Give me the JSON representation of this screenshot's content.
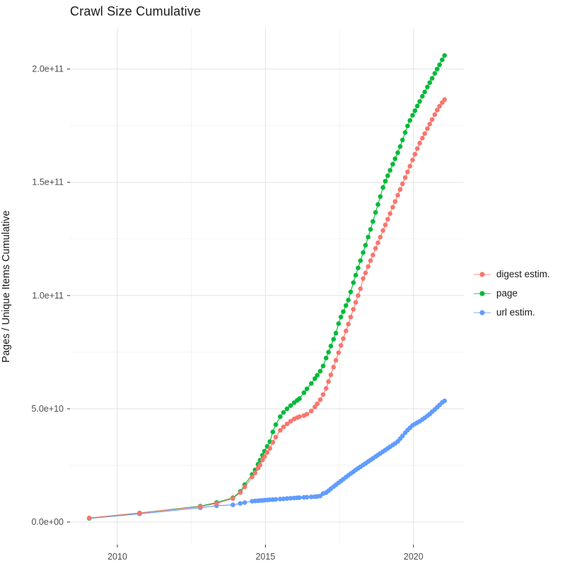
{
  "chart_data": {
    "type": "scatter",
    "title": "Crawl Size Cumulative",
    "xlabel": "",
    "ylabel": "Pages / Unique Items Cumulative",
    "value_unit_note": "y values stored in billions (1e9)",
    "xlim": [
      2008.4,
      2021.7
    ],
    "ylim": [
      -10,
      218
    ],
    "grid": true,
    "legend_position": "right",
    "x_ticks": [
      {
        "value": 2010,
        "label": "2010"
      },
      {
        "value": 2015,
        "label": "2015"
      },
      {
        "value": 2020,
        "label": "2020"
      }
    ],
    "x_minor": [
      2012.5,
      2017.5
    ],
    "y_ticks": [
      {
        "value": 0,
        "label": "0.0e+00"
      },
      {
        "value": 50,
        "label": "5.0e+10"
      },
      {
        "value": 100,
        "label": "1.0e+11"
      },
      {
        "value": 150,
        "label": "1.5e+11"
      },
      {
        "value": 200,
        "label": "2.0e+11"
      }
    ],
    "y_minor": [
      25,
      75,
      125,
      175
    ],
    "colors": {
      "grid_major": "#e3e3e3",
      "grid_minor": "#f0f0f0",
      "tick_text": "#4d4d4d",
      "tick_mark": "#333333",
      "title_text": "#1a1a1a"
    },
    "series": [
      {
        "name": "digest estim.",
        "color": "#F8766D",
        "points": [
          [
            2009.05,
            1.8
          ],
          [
            2010.75,
            4.0
          ],
          [
            2012.8,
            6.8
          ],
          [
            2013.35,
            8.2
          ],
          [
            2013.9,
            10.4
          ],
          [
            2014.15,
            13.0
          ],
          [
            2014.3,
            15.5
          ],
          [
            2014.55,
            19.9
          ],
          [
            2014.65,
            21.7
          ],
          [
            2014.75,
            23.8
          ],
          [
            2014.82,
            25.2
          ],
          [
            2014.9,
            27.4
          ],
          [
            2014.97,
            28.9
          ],
          [
            2015.06,
            30.7
          ],
          [
            2015.15,
            32.5
          ],
          [
            2015.25,
            35.2
          ],
          [
            2015.35,
            37.5
          ],
          [
            2015.5,
            40.5
          ],
          [
            2015.61,
            42.0
          ],
          [
            2015.73,
            43.3
          ],
          [
            2015.85,
            44.5
          ],
          [
            2015.97,
            45.5
          ],
          [
            2016.07,
            46.1
          ],
          [
            2016.15,
            46.5
          ],
          [
            2016.3,
            47.0
          ],
          [
            2016.4,
            47.6
          ],
          [
            2016.55,
            49.0
          ],
          [
            2016.67,
            50.8
          ],
          [
            2016.75,
            52.2
          ],
          [
            2016.85,
            54.0
          ],
          [
            2016.95,
            56.3
          ],
          [
            2017.05,
            59.0
          ],
          [
            2017.13,
            62.0
          ],
          [
            2017.21,
            65.0
          ],
          [
            2017.3,
            68.4
          ],
          [
            2017.38,
            71.4
          ],
          [
            2017.47,
            74.8
          ],
          [
            2017.55,
            78.0
          ],
          [
            2017.63,
            81.0
          ],
          [
            2017.72,
            84.4
          ],
          [
            2017.8,
            87.4
          ],
          [
            2017.88,
            90.5
          ],
          [
            2017.97,
            93.9
          ],
          [
            2018.05,
            97.0
          ],
          [
            2018.13,
            100.0
          ],
          [
            2018.21,
            103.0
          ],
          [
            2018.3,
            107.5
          ],
          [
            2018.38,
            110.0
          ],
          [
            2018.47,
            112.8
          ],
          [
            2018.55,
            115.4
          ],
          [
            2018.63,
            117.9
          ],
          [
            2018.72,
            120.8
          ],
          [
            2018.8,
            123.3
          ],
          [
            2018.88,
            125.8
          ],
          [
            2018.97,
            128.7
          ],
          [
            2019.05,
            131.2
          ],
          [
            2019.13,
            133.7
          ],
          [
            2019.21,
            136.2
          ],
          [
            2019.3,
            139.0
          ],
          [
            2019.38,
            141.5
          ],
          [
            2019.47,
            144.3
          ],
          [
            2019.55,
            146.8
          ],
          [
            2019.63,
            149.3
          ],
          [
            2019.72,
            152.1
          ],
          [
            2019.8,
            154.6
          ],
          [
            2019.88,
            157.1
          ],
          [
            2019.97,
            159.9
          ],
          [
            2020.05,
            162.4
          ],
          [
            2020.13,
            164.9
          ],
          [
            2020.21,
            167.3
          ],
          [
            2020.3,
            169.5
          ],
          [
            2020.38,
            171.5
          ],
          [
            2020.47,
            173.7
          ],
          [
            2020.55,
            175.7
          ],
          [
            2020.63,
            177.7
          ],
          [
            2020.72,
            179.9
          ],
          [
            2020.8,
            181.9
          ],
          [
            2020.88,
            183.6
          ],
          [
            2020.97,
            185.2
          ],
          [
            2021.05,
            186.5
          ]
        ]
      },
      {
        "name": "page",
        "color": "#00BA38",
        "points": [
          [
            2009.05,
            1.7
          ],
          [
            2010.75,
            4.0
          ],
          [
            2012.8,
            7.0
          ],
          [
            2013.35,
            8.6
          ],
          [
            2013.9,
            10.7
          ],
          [
            2014.15,
            13.5
          ],
          [
            2014.3,
            16.5
          ],
          [
            2014.55,
            21.0
          ],
          [
            2014.65,
            23.0
          ],
          [
            2014.75,
            25.5
          ],
          [
            2014.82,
            27.3
          ],
          [
            2014.9,
            29.5
          ],
          [
            2014.97,
            31.3
          ],
          [
            2015.06,
            33.4
          ],
          [
            2015.15,
            35.5
          ],
          [
            2015.25,
            39.8
          ],
          [
            2015.35,
            43.0
          ],
          [
            2015.5,
            46.5
          ],
          [
            2015.61,
            48.4
          ],
          [
            2015.73,
            50.0
          ],
          [
            2015.85,
            51.4
          ],
          [
            2015.97,
            52.7
          ],
          [
            2016.07,
            53.7
          ],
          [
            2016.15,
            54.5
          ],
          [
            2016.3,
            57.1
          ],
          [
            2016.4,
            58.8
          ],
          [
            2016.55,
            61.2
          ],
          [
            2016.67,
            63.3
          ],
          [
            2016.75,
            64.8
          ],
          [
            2016.85,
            66.6
          ],
          [
            2016.95,
            68.9
          ],
          [
            2017.05,
            72.4
          ],
          [
            2017.13,
            75.0
          ],
          [
            2017.21,
            77.7
          ],
          [
            2017.3,
            80.7
          ],
          [
            2017.38,
            83.4
          ],
          [
            2017.47,
            87.6
          ],
          [
            2017.55,
            90.5
          ],
          [
            2017.63,
            92.9
          ],
          [
            2017.72,
            95.6
          ],
          [
            2017.8,
            98.0
          ],
          [
            2017.88,
            101.6
          ],
          [
            2017.97,
            105.7
          ],
          [
            2018.05,
            109.0
          ],
          [
            2018.13,
            112.2
          ],
          [
            2018.21,
            115.4
          ],
          [
            2018.3,
            119.0
          ],
          [
            2018.38,
            122.2
          ],
          [
            2018.47,
            125.8
          ],
          [
            2018.55,
            129.2
          ],
          [
            2018.63,
            132.7
          ],
          [
            2018.72,
            136.7
          ],
          [
            2018.8,
            140.2
          ],
          [
            2018.88,
            143.7
          ],
          [
            2018.97,
            147.7
          ],
          [
            2019.05,
            150.5
          ],
          [
            2019.13,
            152.9
          ],
          [
            2019.21,
            155.3
          ],
          [
            2019.3,
            158.0
          ],
          [
            2019.38,
            160.4
          ],
          [
            2019.47,
            163.1
          ],
          [
            2019.55,
            165.8
          ],
          [
            2019.63,
            168.7
          ],
          [
            2019.72,
            172.0
          ],
          [
            2019.8,
            174.9
          ],
          [
            2019.88,
            177.3
          ],
          [
            2019.97,
            179.6
          ],
          [
            2020.05,
            181.6
          ],
          [
            2020.13,
            183.7
          ],
          [
            2020.21,
            185.7
          ],
          [
            2020.3,
            188.0
          ],
          [
            2020.38,
            189.9
          ],
          [
            2020.47,
            192.1
          ],
          [
            2020.55,
            194.0
          ],
          [
            2020.63,
            195.9
          ],
          [
            2020.72,
            198.1
          ],
          [
            2020.8,
            200.0
          ],
          [
            2020.88,
            201.9
          ],
          [
            2020.97,
            204.1
          ],
          [
            2021.05,
            206.0
          ]
        ]
      },
      {
        "name": "url estim.",
        "color": "#619CFF",
        "points": [
          [
            2009.05,
            1.6
          ],
          [
            2010.75,
            3.6
          ],
          [
            2012.8,
            6.3
          ],
          [
            2013.35,
            7.2
          ],
          [
            2013.9,
            7.6
          ],
          [
            2014.15,
            8.2
          ],
          [
            2014.3,
            8.6
          ],
          [
            2014.55,
            9.2
          ],
          [
            2014.65,
            9.3
          ],
          [
            2014.75,
            9.4
          ],
          [
            2014.82,
            9.5
          ],
          [
            2014.9,
            9.55
          ],
          [
            2014.97,
            9.65
          ],
          [
            2015.06,
            9.75
          ],
          [
            2015.15,
            9.85
          ],
          [
            2015.25,
            9.9
          ],
          [
            2015.35,
            10.0
          ],
          [
            2015.5,
            10.15
          ],
          [
            2015.61,
            10.25
          ],
          [
            2015.73,
            10.4
          ],
          [
            2015.85,
            10.5
          ],
          [
            2015.97,
            10.6
          ],
          [
            2016.07,
            10.7
          ],
          [
            2016.15,
            10.75
          ],
          [
            2016.3,
            10.9
          ],
          [
            2016.4,
            11.0
          ],
          [
            2016.55,
            11.1
          ],
          [
            2016.67,
            11.2
          ],
          [
            2016.75,
            11.3
          ],
          [
            2016.85,
            11.5
          ],
          [
            2016.95,
            12.6
          ],
          [
            2017.05,
            13.0
          ],
          [
            2017.13,
            13.8
          ],
          [
            2017.21,
            14.7
          ],
          [
            2017.3,
            15.6
          ],
          [
            2017.38,
            16.4
          ],
          [
            2017.47,
            17.3
          ],
          [
            2017.55,
            18.1
          ],
          [
            2017.63,
            18.9
          ],
          [
            2017.72,
            19.8
          ],
          [
            2017.8,
            20.6
          ],
          [
            2017.88,
            21.4
          ],
          [
            2017.97,
            22.2
          ],
          [
            2018.05,
            23.0
          ],
          [
            2018.13,
            23.7
          ],
          [
            2018.21,
            24.4
          ],
          [
            2018.3,
            25.2
          ],
          [
            2018.38,
            25.9
          ],
          [
            2018.47,
            26.7
          ],
          [
            2018.55,
            27.4
          ],
          [
            2018.63,
            28.1
          ],
          [
            2018.72,
            28.9
          ],
          [
            2018.8,
            29.6
          ],
          [
            2018.88,
            30.3
          ],
          [
            2018.97,
            31.1
          ],
          [
            2019.05,
            31.8
          ],
          [
            2019.13,
            32.5
          ],
          [
            2019.21,
            33.2
          ],
          [
            2019.3,
            34.0
          ],
          [
            2019.38,
            34.7
          ],
          [
            2019.47,
            35.6
          ],
          [
            2019.55,
            36.8
          ],
          [
            2019.63,
            38.0
          ],
          [
            2019.72,
            39.4
          ],
          [
            2019.8,
            40.6
          ],
          [
            2019.88,
            41.6
          ],
          [
            2019.97,
            42.7
          ],
          [
            2020.05,
            43.3
          ],
          [
            2020.13,
            43.9
          ],
          [
            2020.21,
            44.5
          ],
          [
            2020.3,
            45.3
          ],
          [
            2020.38,
            46.0
          ],
          [
            2020.47,
            46.9
          ],
          [
            2020.55,
            47.7
          ],
          [
            2020.63,
            48.7
          ],
          [
            2020.72,
            49.7
          ],
          [
            2020.8,
            50.7
          ],
          [
            2020.88,
            51.7
          ],
          [
            2020.97,
            52.8
          ],
          [
            2021.05,
            53.5
          ]
        ]
      }
    ]
  }
}
